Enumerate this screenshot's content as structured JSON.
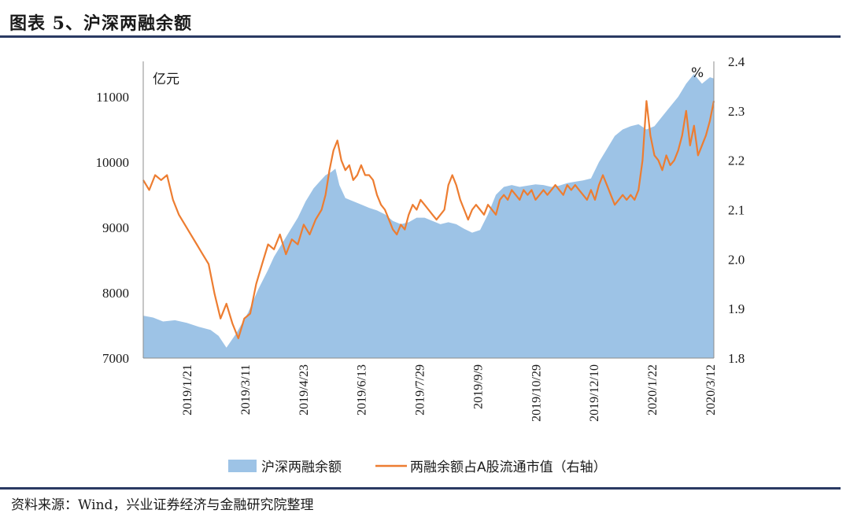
{
  "header": {
    "title": "图表 5、沪深两融余额"
  },
  "footer": {
    "source": "资料来源：Wind，兴业证券经济与金融研究院整理"
  },
  "colors": {
    "area": "#9dc3e6",
    "line": "#ed7d31",
    "rule": "#2a3a63"
  },
  "chart_data": {
    "type": "area+line",
    "left_unit": "亿元",
    "right_unit": "%",
    "y_left": {
      "min": 7000,
      "max": 11000,
      "ticks": [
        7000,
        8000,
        9000,
        10000,
        11000
      ]
    },
    "y_right": {
      "min": 1.8,
      "max": 2.4,
      "ticks": [
        "1.8",
        "1.9",
        "2.0",
        "2.1",
        "2.2",
        "2.3",
        "2.4"
      ]
    },
    "x_ticks": [
      "2019/1/21",
      "2019/3/11",
      "2019/4/23",
      "2019/6/13",
      "2019/7/29",
      "2019/9/9",
      "2019/10/29",
      "2019/12/10",
      "2020/1/22",
      "2020/3/12"
    ],
    "legend": [
      {
        "name": "沪深两融余额",
        "kind": "area"
      },
      {
        "name": "两融余额占A股流通市值（右轴）",
        "kind": "line"
      }
    ],
    "series": [
      {
        "name": "沪深两融余额",
        "axis": "left",
        "points": [
          [
            0,
            7650
          ],
          [
            5,
            7620
          ],
          [
            10,
            7560
          ],
          [
            16,
            7580
          ],
          [
            22,
            7540
          ],
          [
            28,
            7480
          ],
          [
            34,
            7430
          ],
          [
            38,
            7340
          ],
          [
            42,
            7160
          ],
          [
            47,
            7380
          ],
          [
            53,
            7700
          ],
          [
            58,
            8050
          ],
          [
            63,
            8350
          ],
          [
            66,
            8550
          ],
          [
            70,
            8750
          ],
          [
            74,
            8950
          ],
          [
            78,
            9150
          ],
          [
            82,
            9400
          ],
          [
            86,
            9600
          ],
          [
            89,
            9700
          ],
          [
            92,
            9800
          ],
          [
            95,
            9850
          ],
          [
            97,
            9900
          ],
          [
            99,
            9650
          ],
          [
            102,
            9450
          ],
          [
            106,
            9400
          ],
          [
            110,
            9350
          ],
          [
            114,
            9300
          ],
          [
            118,
            9260
          ],
          [
            122,
            9200
          ],
          [
            126,
            9100
          ],
          [
            130,
            9050
          ],
          [
            134,
            9080
          ],
          [
            138,
            9150
          ],
          [
            142,
            9150
          ],
          [
            146,
            9100
          ],
          [
            150,
            9050
          ],
          [
            154,
            9080
          ],
          [
            158,
            9050
          ],
          [
            162,
            8980
          ],
          [
            166,
            8920
          ],
          [
            170,
            8960
          ],
          [
            174,
            9200
          ],
          [
            178,
            9500
          ],
          [
            182,
            9620
          ],
          [
            186,
            9650
          ],
          [
            190,
            9620
          ],
          [
            194,
            9640
          ],
          [
            198,
            9660
          ],
          [
            202,
            9650
          ],
          [
            206,
            9620
          ],
          [
            210,
            9640
          ],
          [
            214,
            9680
          ],
          [
            218,
            9700
          ],
          [
            222,
            9720
          ],
          [
            226,
            9750
          ],
          [
            230,
            10000
          ],
          [
            234,
            10200
          ],
          [
            238,
            10400
          ],
          [
            242,
            10500
          ],
          [
            246,
            10550
          ],
          [
            250,
            10580
          ],
          [
            254,
            10500
          ],
          [
            258,
            10550
          ],
          [
            262,
            10700
          ],
          [
            266,
            10850
          ],
          [
            270,
            11000
          ],
          [
            274,
            11200
          ],
          [
            278,
            11350
          ],
          [
            282,
            11200
          ],
          [
            286,
            11300
          ],
          [
            288,
            11280
          ]
        ]
      },
      {
        "name": "两融余额占A股流通市值（右轴）",
        "axis": "right",
        "points": [
          [
            0,
            2.16
          ],
          [
            3,
            2.14
          ],
          [
            6,
            2.17
          ],
          [
            9,
            2.16
          ],
          [
            12,
            2.17
          ],
          [
            15,
            2.12
          ],
          [
            18,
            2.09
          ],
          [
            21,
            2.07
          ],
          [
            24,
            2.05
          ],
          [
            27,
            2.03
          ],
          [
            30,
            2.01
          ],
          [
            33,
            1.99
          ],
          [
            36,
            1.93
          ],
          [
            39,
            1.88
          ],
          [
            42,
            1.91
          ],
          [
            45,
            1.87
          ],
          [
            48,
            1.84
          ],
          [
            51,
            1.88
          ],
          [
            54,
            1.89
          ],
          [
            57,
            1.95
          ],
          [
            60,
            1.99
          ],
          [
            63,
            2.03
          ],
          [
            66,
            2.02
          ],
          [
            69,
            2.05
          ],
          [
            72,
            2.01
          ],
          [
            75,
            2.04
          ],
          [
            78,
            2.03
          ],
          [
            81,
            2.07
          ],
          [
            84,
            2.05
          ],
          [
            87,
            2.08
          ],
          [
            90,
            2.1
          ],
          [
            92,
            2.13
          ],
          [
            94,
            2.18
          ],
          [
            96,
            2.22
          ],
          [
            98,
            2.24
          ],
          [
            100,
            2.2
          ],
          [
            102,
            2.18
          ],
          [
            104,
            2.19
          ],
          [
            106,
            2.16
          ],
          [
            108,
            2.17
          ],
          [
            110,
            2.19
          ],
          [
            112,
            2.17
          ],
          [
            114,
            2.17
          ],
          [
            116,
            2.16
          ],
          [
            118,
            2.13
          ],
          [
            120,
            2.11
          ],
          [
            122,
            2.1
          ],
          [
            124,
            2.08
          ],
          [
            126,
            2.06
          ],
          [
            128,
            2.05
          ],
          [
            130,
            2.07
          ],
          [
            132,
            2.06
          ],
          [
            134,
            2.09
          ],
          [
            136,
            2.11
          ],
          [
            138,
            2.1
          ],
          [
            140,
            2.12
          ],
          [
            142,
            2.11
          ],
          [
            144,
            2.1
          ],
          [
            146,
            2.09
          ],
          [
            148,
            2.08
          ],
          [
            150,
            2.09
          ],
          [
            152,
            2.1
          ],
          [
            154,
            2.15
          ],
          [
            156,
            2.17
          ],
          [
            158,
            2.15
          ],
          [
            160,
            2.12
          ],
          [
            162,
            2.1
          ],
          [
            164,
            2.08
          ],
          [
            166,
            2.1
          ],
          [
            168,
            2.11
          ],
          [
            170,
            2.1
          ],
          [
            172,
            2.09
          ],
          [
            174,
            2.11
          ],
          [
            176,
            2.1
          ],
          [
            178,
            2.09
          ],
          [
            180,
            2.12
          ],
          [
            182,
            2.13
          ],
          [
            184,
            2.12
          ],
          [
            186,
            2.14
          ],
          [
            188,
            2.13
          ],
          [
            190,
            2.12
          ],
          [
            192,
            2.14
          ],
          [
            194,
            2.13
          ],
          [
            196,
            2.14
          ],
          [
            198,
            2.12
          ],
          [
            200,
            2.13
          ],
          [
            202,
            2.14
          ],
          [
            204,
            2.13
          ],
          [
            206,
            2.14
          ],
          [
            208,
            2.15
          ],
          [
            210,
            2.14
          ],
          [
            212,
            2.13
          ],
          [
            214,
            2.15
          ],
          [
            216,
            2.14
          ],
          [
            218,
            2.15
          ],
          [
            220,
            2.14
          ],
          [
            222,
            2.13
          ],
          [
            224,
            2.12
          ],
          [
            226,
            2.14
          ],
          [
            228,
            2.12
          ],
          [
            230,
            2.15
          ],
          [
            232,
            2.17
          ],
          [
            234,
            2.15
          ],
          [
            236,
            2.13
          ],
          [
            238,
            2.11
          ],
          [
            240,
            2.12
          ],
          [
            242,
            2.13
          ],
          [
            244,
            2.12
          ],
          [
            246,
            2.13
          ],
          [
            248,
            2.12
          ],
          [
            250,
            2.14
          ],
          [
            252,
            2.2
          ],
          [
            254,
            2.32
          ],
          [
            256,
            2.25
          ],
          [
            258,
            2.21
          ],
          [
            260,
            2.2
          ],
          [
            262,
            2.18
          ],
          [
            264,
            2.21
          ],
          [
            266,
            2.19
          ],
          [
            268,
            2.2
          ],
          [
            270,
            2.22
          ],
          [
            272,
            2.25
          ],
          [
            274,
            2.3
          ],
          [
            276,
            2.23
          ],
          [
            278,
            2.27
          ],
          [
            280,
            2.21
          ],
          [
            282,
            2.23
          ],
          [
            284,
            2.25
          ],
          [
            286,
            2.28
          ],
          [
            288,
            2.32
          ]
        ]
      }
    ]
  }
}
